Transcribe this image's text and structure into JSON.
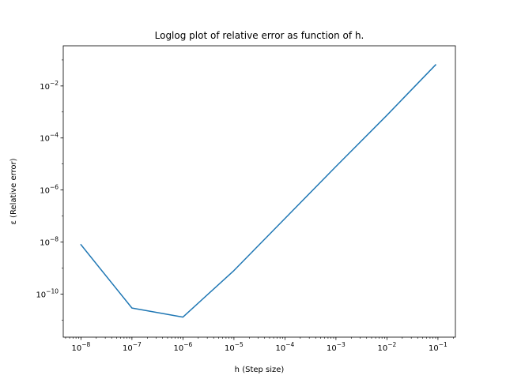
{
  "chart_data": {
    "type": "line",
    "title": "Loglog plot of relative error as function of h.",
    "xlabel": "h (Step size)",
    "ylabel": "ε (Relative error)",
    "xscale": "log",
    "yscale": "log",
    "xlim": [
      4.5e-09,
      0.22
    ],
    "ylim": [
      2.2e-12,
      0.35
    ],
    "grid": false,
    "legend": "none",
    "series": [
      {
        "color": "#1f77b4",
        "x": [
          1e-08,
          1e-07,
          1e-06,
          1e-05,
          0.0001,
          0.001,
          0.01,
          0.09
        ],
        "y": [
          7.9e-09,
          2.9e-11,
          1.3e-11,
          8e-10,
          8e-08,
          8e-06,
          0.00075,
          0.065
        ]
      }
    ],
    "x_ticks": [
      {
        "value": 1e-08,
        "mant": "10",
        "exp": "−8"
      },
      {
        "value": 1e-07,
        "mant": "10",
        "exp": "−7"
      },
      {
        "value": 1e-06,
        "mant": "10",
        "exp": "−6"
      },
      {
        "value": 1e-05,
        "mant": "10",
        "exp": "−5"
      },
      {
        "value": 0.0001,
        "mant": "10",
        "exp": "−4"
      },
      {
        "value": 0.001,
        "mant": "10",
        "exp": "−3"
      },
      {
        "value": 0.01,
        "mant": "10",
        "exp": "−2"
      },
      {
        "value": 0.1,
        "mant": "10",
        "exp": "−1"
      }
    ],
    "y_ticks": [
      {
        "value": 1e-10,
        "mant": "10",
        "exp": "−10"
      },
      {
        "value": 1e-08,
        "mant": "10",
        "exp": "−8"
      },
      {
        "value": 1e-06,
        "mant": "10",
        "exp": "−6"
      },
      {
        "value": 0.0001,
        "mant": "10",
        "exp": "−4"
      },
      {
        "value": 0.01,
        "mant": "10",
        "exp": "−2"
      }
    ]
  }
}
